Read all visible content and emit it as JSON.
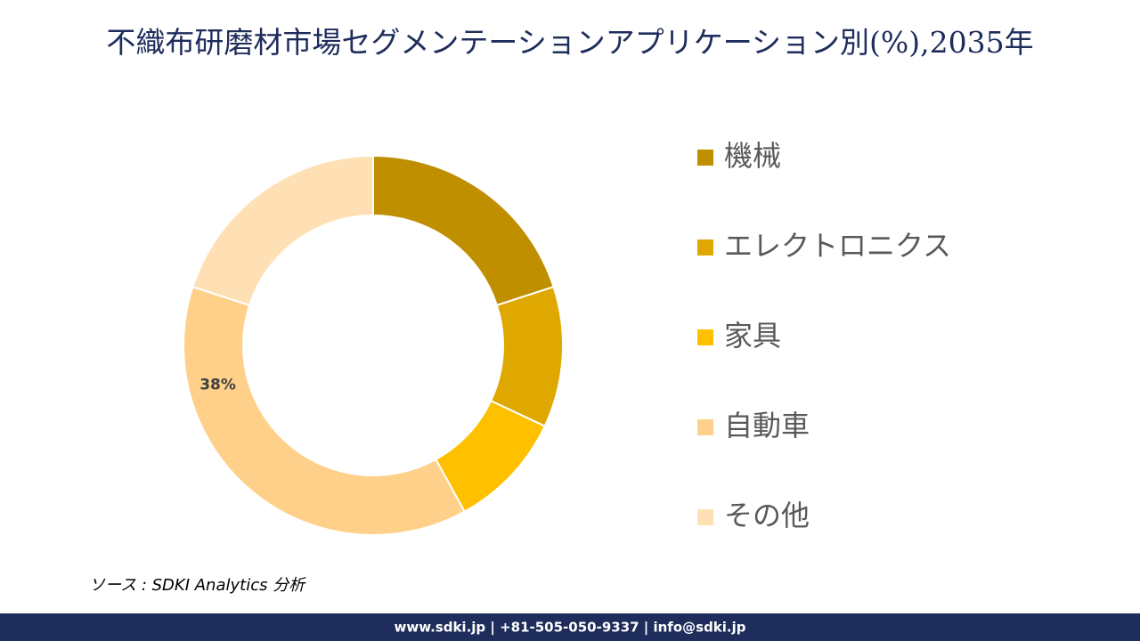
{
  "chart_data": {
    "type": "donut",
    "title": "不織布研磨材市場セグメンテーションアプリケーション別(%),2035年",
    "categories": [
      "機械",
      "エレクトロニクス",
      "家具",
      "自動車",
      "その他"
    ],
    "values": [
      20,
      12,
      10,
      38,
      20
    ],
    "value_labels": [
      null,
      null,
      null,
      "38%",
      null
    ],
    "colors": [
      "#bf8f00",
      "#dfa800",
      "#ffc000",
      "#ffd08a",
      "#ffe0b4"
    ],
    "legend": "right"
  },
  "source": "ソース : SDKI Analytics 分析",
  "footer": "www.sdki.jp | +81-505-050-9337 | info@sdki.jp"
}
